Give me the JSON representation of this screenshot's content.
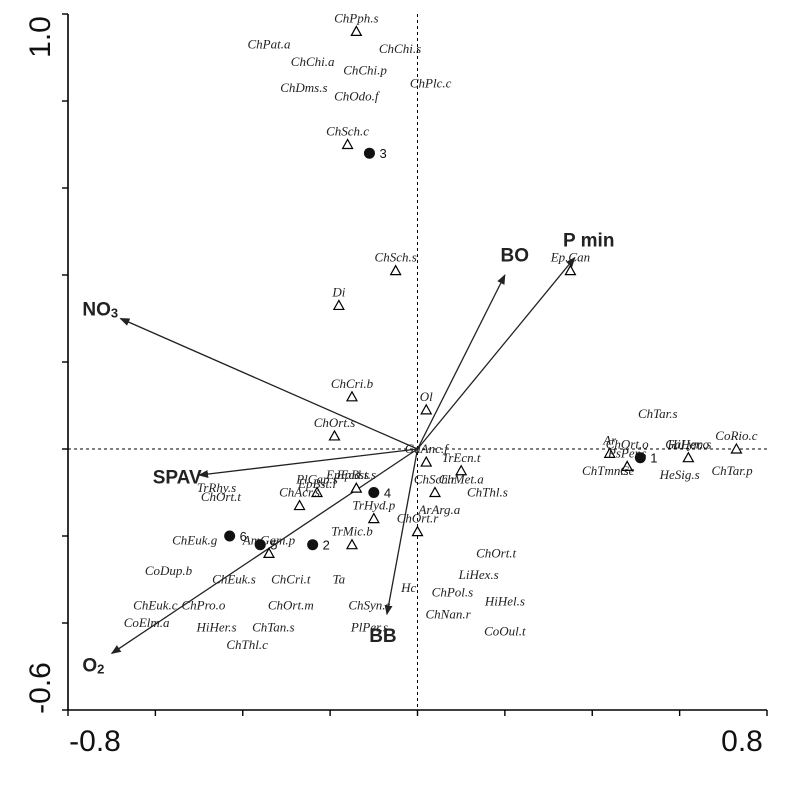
{
  "chart_data": {
    "type": "scatter",
    "xlim": [
      -0.8,
      0.8
    ],
    "ylim": [
      -0.6,
      1.0
    ],
    "x_tick_labels": [
      "-0.8",
      "0.8"
    ],
    "y_tick_labels": [
      "1.0",
      "-0.6"
    ],
    "grid": false,
    "environmental_vectors": [
      {
        "name": "NO",
        "sub": "3",
        "x": -0.68,
        "y": 0.3
      },
      {
        "name": "BO",
        "sub": "",
        "x": 0.2,
        "y": 0.4
      },
      {
        "name": "P min",
        "sub": "",
        "x": 0.36,
        "y": 0.44
      },
      {
        "name": "SPAV",
        "sub": "",
        "x": -0.5,
        "y": -0.06
      },
      {
        "name": "BB",
        "sub": "",
        "x": -0.07,
        "y": -0.38
      },
      {
        "name": "O",
        "sub": "2",
        "x": -0.7,
        "y": -0.47
      }
    ],
    "sites": [
      {
        "label": "1",
        "x": 0.51,
        "y": -0.02
      },
      {
        "label": "2",
        "x": -0.24,
        "y": -0.22
      },
      {
        "label": "3",
        "x": -0.11,
        "y": 0.68
      },
      {
        "label": "4",
        "x": -0.1,
        "y": -0.1
      },
      {
        "label": "5",
        "x": -0.36,
        "y": -0.22
      },
      {
        "label": "6",
        "x": -0.43,
        "y": -0.2
      }
    ],
    "species": [
      {
        "name": "ChPph.s",
        "x": -0.14,
        "y": 0.96,
        "marker": true
      },
      {
        "name": "ChPat.a",
        "x": -0.34,
        "y": 0.93,
        "marker": false
      },
      {
        "name": "ChChi.s",
        "x": -0.04,
        "y": 0.92,
        "marker": false
      },
      {
        "name": "ChChi.a",
        "x": -0.24,
        "y": 0.89,
        "marker": false
      },
      {
        "name": "ChChi.p",
        "x": -0.12,
        "y": 0.87,
        "marker": false
      },
      {
        "name": "ChDms.s",
        "x": -0.26,
        "y": 0.83,
        "marker": false
      },
      {
        "name": "ChPlc.c",
        "x": 0.03,
        "y": 0.84,
        "marker": false
      },
      {
        "name": "ChOdo.f",
        "x": -0.14,
        "y": 0.81,
        "marker": false
      },
      {
        "name": "ChSch.c",
        "x": -0.16,
        "y": 0.7,
        "marker": true
      },
      {
        "name": "ChSch.s",
        "x": -0.05,
        "y": 0.41,
        "marker": true
      },
      {
        "name": "Ep.Can",
        "x": 0.35,
        "y": 0.41,
        "marker": true
      },
      {
        "name": "Di",
        "x": -0.18,
        "y": 0.33,
        "marker": true
      },
      {
        "name": "ChCri.b",
        "x": -0.15,
        "y": 0.12,
        "marker": true
      },
      {
        "name": "Ol",
        "x": 0.02,
        "y": 0.09,
        "marker": true
      },
      {
        "name": "ChOrt.s",
        "x": -0.19,
        "y": 0.03,
        "marker": true
      },
      {
        "name": "ChTar.s",
        "x": 0.55,
        "y": 0.08,
        "marker": false
      },
      {
        "name": "CoRio.c",
        "x": 0.73,
        "y": 0.0,
        "marker": true
      },
      {
        "name": "Ar",
        "x": 0.44,
        "y": -0.01,
        "marker": true
      },
      {
        "name": "ChOrt.o",
        "x": 0.48,
        "y": 0.01,
        "marker": false
      },
      {
        "name": "HiHer.o",
        "x": 0.62,
        "y": 0.01,
        "marker": false
      },
      {
        "name": "GaLym.s",
        "x": 0.62,
        "y": -0.02,
        "marker": true
      },
      {
        "name": "PsPer.s",
        "x": 0.48,
        "y": -0.04,
        "marker": true
      },
      {
        "name": "ChTmn.s",
        "x": 0.43,
        "y": -0.05,
        "marker": false
      },
      {
        "name": "Ce",
        "x": 0.48,
        "y": -0.05,
        "marker": false
      },
      {
        "name": "HeSig.s",
        "x": 0.6,
        "y": -0.06,
        "marker": false
      },
      {
        "name": "ChTar.p",
        "x": 0.72,
        "y": -0.05,
        "marker": false
      },
      {
        "name": "GaAnc.f",
        "x": 0.02,
        "y": -0.03,
        "marker": true
      },
      {
        "name": "TrEcn.t",
        "x": 0.1,
        "y": -0.05,
        "marker": true
      },
      {
        "name": "ChMet.a",
        "x": 0.1,
        "y": -0.07,
        "marker": false
      },
      {
        "name": "EpEcd.s",
        "x": -0.16,
        "y": -0.06,
        "marker": false
      },
      {
        "name": "EpBst.s",
        "x": -0.14,
        "y": -0.09,
        "marker": true
      },
      {
        "name": "EpBst.l",
        "x": -0.23,
        "y": -0.08,
        "marker": false
      },
      {
        "name": "TrRhy.s",
        "x": -0.46,
        "y": -0.09,
        "marker": false
      },
      {
        "name": "PlCap.s",
        "x": -0.23,
        "y": -0.1,
        "marker": true
      },
      {
        "name": "ChSch.r",
        "x": 0.04,
        "y": -0.1,
        "marker": true
      },
      {
        "name": "ChThl.s",
        "x": 0.16,
        "y": -0.1,
        "marker": false
      },
      {
        "name": "ChOrt.t",
        "x": -0.45,
        "y": -0.11,
        "marker": false
      },
      {
        "name": "ChAcr.s",
        "x": -0.27,
        "y": -0.13,
        "marker": true
      },
      {
        "name": "TrHyd.p",
        "x": -0.1,
        "y": -0.16,
        "marker": true
      },
      {
        "name": "ArArg.a",
        "x": 0.05,
        "y": -0.14,
        "marker": false
      },
      {
        "name": "ChEuk.g",
        "x": -0.51,
        "y": -0.21,
        "marker": false
      },
      {
        "name": "AmGam.p",
        "x": -0.34,
        "y": -0.24,
        "marker": true
      },
      {
        "name": "TrMic.b",
        "x": -0.15,
        "y": -0.22,
        "marker": true
      },
      {
        "name": "ChOrt.r",
        "x": 0.0,
        "y": -0.19,
        "marker": true
      },
      {
        "name": "ChOrt.t",
        "x": 0.18,
        "y": -0.24,
        "marker": false
      },
      {
        "name": "CoDup.b",
        "x": -0.57,
        "y": -0.28,
        "marker": false
      },
      {
        "name": "ChEuk.s",
        "x": -0.42,
        "y": -0.3,
        "marker": false
      },
      {
        "name": "ChCri.t",
        "x": -0.29,
        "y": -0.3,
        "marker": false
      },
      {
        "name": "Ta",
        "x": -0.18,
        "y": -0.3,
        "marker": false
      },
      {
        "name": "Hc",
        "x": -0.02,
        "y": -0.32,
        "marker": false
      },
      {
        "name": "LiHex.s",
        "x": 0.14,
        "y": -0.29,
        "marker": false
      },
      {
        "name": "ChPol.s",
        "x": 0.08,
        "y": -0.33,
        "marker": false
      },
      {
        "name": "ChEuk.c",
        "x": -0.6,
        "y": -0.36,
        "marker": false
      },
      {
        "name": "ChPro.o",
        "x": -0.49,
        "y": -0.36,
        "marker": false
      },
      {
        "name": "ChOrt.m",
        "x": -0.29,
        "y": -0.36,
        "marker": false
      },
      {
        "name": "ChSyn.s",
        "x": -0.11,
        "y": -0.36,
        "marker": false
      },
      {
        "name": "HiHel.s",
        "x": 0.2,
        "y": -0.35,
        "marker": false
      },
      {
        "name": "ChNan.r",
        "x": 0.07,
        "y": -0.38,
        "marker": false
      },
      {
        "name": "CoElm.a",
        "x": -0.62,
        "y": -0.4,
        "marker": false
      },
      {
        "name": "HiHer.s",
        "x": -0.46,
        "y": -0.41,
        "marker": false
      },
      {
        "name": "ChTan.s",
        "x": -0.33,
        "y": -0.41,
        "marker": false
      },
      {
        "name": "PlPer.s",
        "x": -0.11,
        "y": -0.41,
        "marker": false
      },
      {
        "name": "CoOul.t",
        "x": 0.2,
        "y": -0.42,
        "marker": false
      },
      {
        "name": "ChThl.c",
        "x": -0.39,
        "y": -0.45,
        "marker": false
      }
    ]
  }
}
